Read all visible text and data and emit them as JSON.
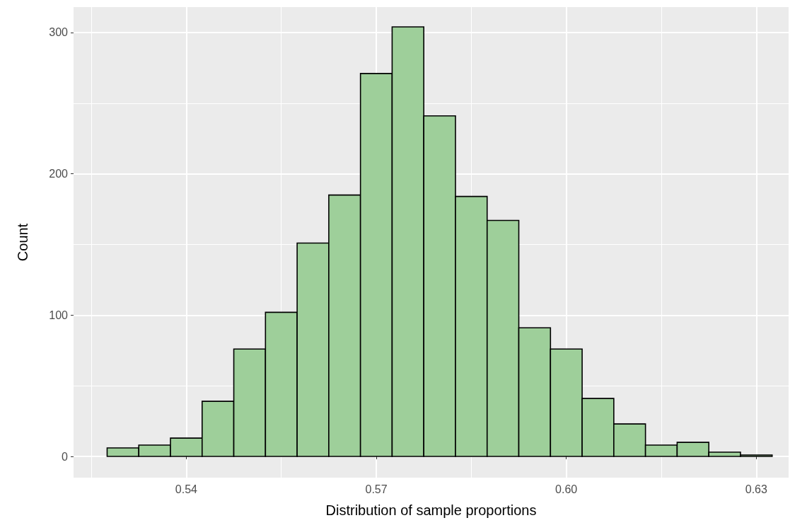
{
  "chart_data": {
    "type": "histogram",
    "xlabel": "Distribution of sample proportions",
    "ylabel": "Count",
    "bins": [
      0.5275,
      0.5325,
      0.5375,
      0.5425,
      0.5475,
      0.5525,
      0.5575,
      0.5625,
      0.5675,
      0.5725,
      0.5775,
      0.5825,
      0.5875,
      0.5925,
      0.5975,
      0.6025,
      0.6075,
      0.6125,
      0.6175,
      0.6225,
      0.6275,
      0.6325
    ],
    "values": [
      6,
      8,
      13,
      39,
      76,
      102,
      151,
      185,
      271,
      304,
      241,
      184,
      167,
      91,
      76,
      41,
      23,
      8,
      10,
      3,
      1
    ],
    "color": "#9ecf9a",
    "xlim": [
      0.5222,
      0.6351
    ],
    "xticks": [
      0.54,
      0.57,
      {
        "value": 0.6,
        "label": "0.60"
      },
      0.63
    ],
    "ylim": [
      -15,
      318
    ],
    "yticks": [
      0,
      100,
      200,
      300
    ],
    "grid": true
  }
}
